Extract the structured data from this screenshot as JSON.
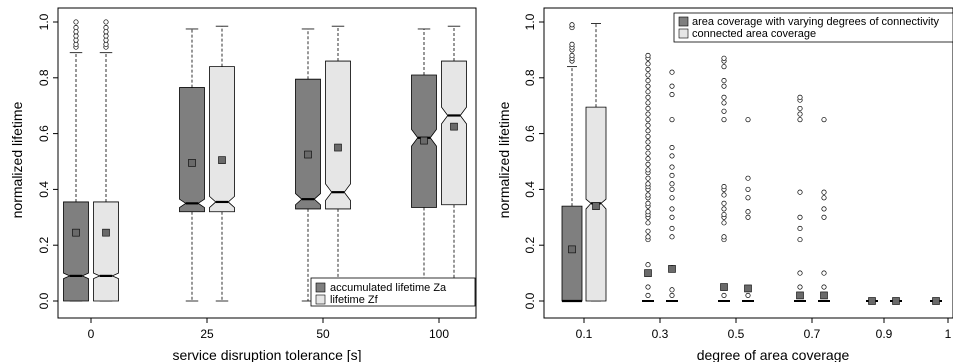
{
  "chart_data": [
    {
      "type": "box",
      "xlabel": "service disruption tolerance [s]",
      "ylabel": "normalized lifetime",
      "ylim": [
        0,
        1
      ],
      "yticks": [
        "0.0",
        "0.2",
        "0.4",
        "0.6",
        "0.8",
        "1.0"
      ],
      "categories": [
        "0",
        "25",
        "50",
        "100"
      ],
      "legend_position": "bottom-right",
      "series": [
        {
          "name": "accumulated lifetime Za",
          "color": "#7f7f7f",
          "boxes": [
            {
              "lower_whisker": 0.0,
              "q1": 0.0,
              "median": 0.09,
              "q3": 0.355,
              "upper_whisker": 0.89,
              "mean": 0.245,
              "notch_low": 0.08,
              "notch_high": 0.1,
              "outliers": [
                0.91,
                0.92,
                0.935,
                0.95,
                0.965,
                0.98,
                1.0
              ]
            },
            {
              "lower_whisker": 0.0,
              "q1": 0.32,
              "median": 0.35,
              "q3": 0.765,
              "upper_whisker": 0.975,
              "mean": 0.495,
              "notch_low": 0.335,
              "notch_high": 0.365
            },
            {
              "lower_whisker": 0.0,
              "q1": 0.33,
              "median": 0.365,
              "q3": 0.795,
              "upper_whisker": 0.975,
              "mean": 0.525,
              "notch_low": 0.345,
              "notch_high": 0.385
            },
            {
              "lower_whisker": 0.0,
              "q1": 0.335,
              "median": 0.585,
              "q3": 0.81,
              "upper_whisker": 0.975,
              "mean": 0.575,
              "notch_low": 0.555,
              "notch_high": 0.615
            }
          ]
        },
        {
          "name": "lifetime Zf",
          "color": "#e6e6e6",
          "boxes": [
            {
              "lower_whisker": 0.0,
              "q1": 0.0,
              "median": 0.09,
              "q3": 0.355,
              "upper_whisker": 0.89,
              "mean": 0.245,
              "notch_low": 0.08,
              "notch_high": 0.1,
              "outliers": [
                0.91,
                0.92,
                0.935,
                0.95,
                0.965,
                0.98,
                1.0
              ]
            },
            {
              "lower_whisker": 0.0,
              "q1": 0.32,
              "median": 0.355,
              "q3": 0.84,
              "upper_whisker": 0.985,
              "mean": 0.505,
              "notch_low": 0.335,
              "notch_high": 0.375
            },
            {
              "lower_whisker": 0.0,
              "q1": 0.33,
              "median": 0.39,
              "q3": 0.86,
              "upper_whisker": 0.985,
              "mean": 0.55,
              "notch_low": 0.36,
              "notch_high": 0.42
            },
            {
              "lower_whisker": 0.0,
              "q1": 0.345,
              "median": 0.665,
              "q3": 0.86,
              "upper_whisker": 0.985,
              "mean": 0.625,
              "notch_low": 0.635,
              "notch_high": 0.695
            }
          ]
        }
      ]
    },
    {
      "type": "box",
      "xlabel": "degree of area coverage",
      "ylabel": "normalized lifetime",
      "ylim": [
        0,
        1
      ],
      "yticks": [
        "0.0",
        "0.2",
        "0.4",
        "0.6",
        "0.8",
        "1.0"
      ],
      "categories": [
        "0.1",
        "0.3",
        "0.5",
        "0.7",
        "0.9",
        "1"
      ],
      "legend_position": "top-right",
      "series": [
        {
          "name": "area coverage with varying degrees of connectivity",
          "color": "#7f7f7f",
          "boxes": [
            {
              "lower_whisker": 0.0,
              "q1": 0.0,
              "median": 0.0,
              "q3": 0.34,
              "upper_whisker": 0.84,
              "mean": 0.185,
              "outliers": [
                0.86,
                0.87,
                0.88,
                0.9,
                0.91,
                0.92,
                0.98,
                0.99
              ]
            },
            {
              "lower_whisker": 0.0,
              "q1": 0.0,
              "median": 0.0,
              "q3": 0.0,
              "upper_whisker": 0.0,
              "mean": 0.1,
              "outliers": [
                0.02,
                0.05,
                0.1,
                0.13,
                0.22,
                0.23,
                0.25,
                0.28,
                0.3,
                0.31,
                0.32,
                0.34,
                0.35,
                0.37,
                0.38,
                0.4,
                0.41,
                0.42,
                0.44,
                0.46,
                0.47,
                0.49,
                0.51,
                0.53,
                0.55,
                0.57,
                0.59,
                0.61,
                0.63,
                0.65,
                0.67,
                0.69,
                0.71,
                0.73,
                0.75,
                0.77,
                0.79,
                0.81,
                0.83,
                0.85,
                0.87,
                0.88
              ]
            },
            {
              "lower_whisker": 0.0,
              "q1": 0.0,
              "median": 0.0,
              "q3": 0.0,
              "upper_whisker": 0.0,
              "mean": 0.05,
              "outliers": [
                0.02,
                0.22,
                0.23,
                0.28,
                0.3,
                0.31,
                0.33,
                0.35,
                0.38,
                0.4,
                0.41,
                0.65,
                0.68,
                0.71,
                0.73,
                0.77,
                0.79,
                0.84,
                0.86,
                0.87
              ]
            },
            {
              "lower_whisker": 0.0,
              "q1": 0.0,
              "median": 0.0,
              "q3": 0.0,
              "upper_whisker": 0.0,
              "mean": 0.02,
              "outliers": [
                0.05,
                0.1,
                0.22,
                0.26,
                0.3,
                0.39,
                0.65,
                0.67,
                0.69,
                0.72,
                0.73
              ]
            },
            {
              "lower_whisker": 0.0,
              "q1": 0.0,
              "median": 0.0,
              "q3": 0.0,
              "upper_whisker": 0.0,
              "mean": 0.0
            },
            {
              "lower_whisker": 0.0,
              "q1": 0.0,
              "median": 0.0,
              "q3": 0.0,
              "upper_whisker": 0.0,
              "mean": 0.0
            }
          ]
        },
        {
          "name": "connected area coverage",
          "color": "#e6e6e6",
          "boxes": [
            {
              "lower_whisker": 0.0,
              "q1": 0.0,
              "median": 0.35,
              "q3": 0.695,
              "upper_whisker": 0.995,
              "mean": 0.34,
              "notch_low": 0.33,
              "notch_high": 0.365
            },
            {
              "lower_whisker": 0.0,
              "q1": 0.0,
              "median": 0.0,
              "q3": 0.0,
              "upper_whisker": 0.0,
              "mean": 0.115,
              "outliers": [
                0.02,
                0.04,
                0.12,
                0.23,
                0.26,
                0.3,
                0.33,
                0.37,
                0.4,
                0.42,
                0.45,
                0.48,
                0.52,
                0.55,
                0.65,
                0.74,
                0.77,
                0.82
              ]
            },
            {
              "lower_whisker": 0.0,
              "q1": 0.0,
              "median": 0.0,
              "q3": 0.0,
              "upper_whisker": 0.0,
              "mean": 0.045,
              "outliers": [
                0.02,
                0.3,
                0.32,
                0.37,
                0.4,
                0.44,
                0.65
              ]
            },
            {
              "lower_whisker": 0.0,
              "q1": 0.0,
              "median": 0.0,
              "q3": 0.0,
              "upper_whisker": 0.0,
              "mean": 0.02,
              "outliers": [
                0.05,
                0.1,
                0.3,
                0.33,
                0.37,
                0.39,
                0.65
              ]
            },
            {
              "lower_whisker": 0.0,
              "q1": 0.0,
              "median": 0.0,
              "q3": 0.0,
              "upper_whisker": 0.0,
              "mean": 0.0
            },
            {
              "lower_whisker": 0.0,
              "q1": 0.0,
              "median": 0.0,
              "q3": 0.0,
              "upper_whisker": 0.0,
              "mean": 0.0
            }
          ]
        }
      ]
    }
  ]
}
